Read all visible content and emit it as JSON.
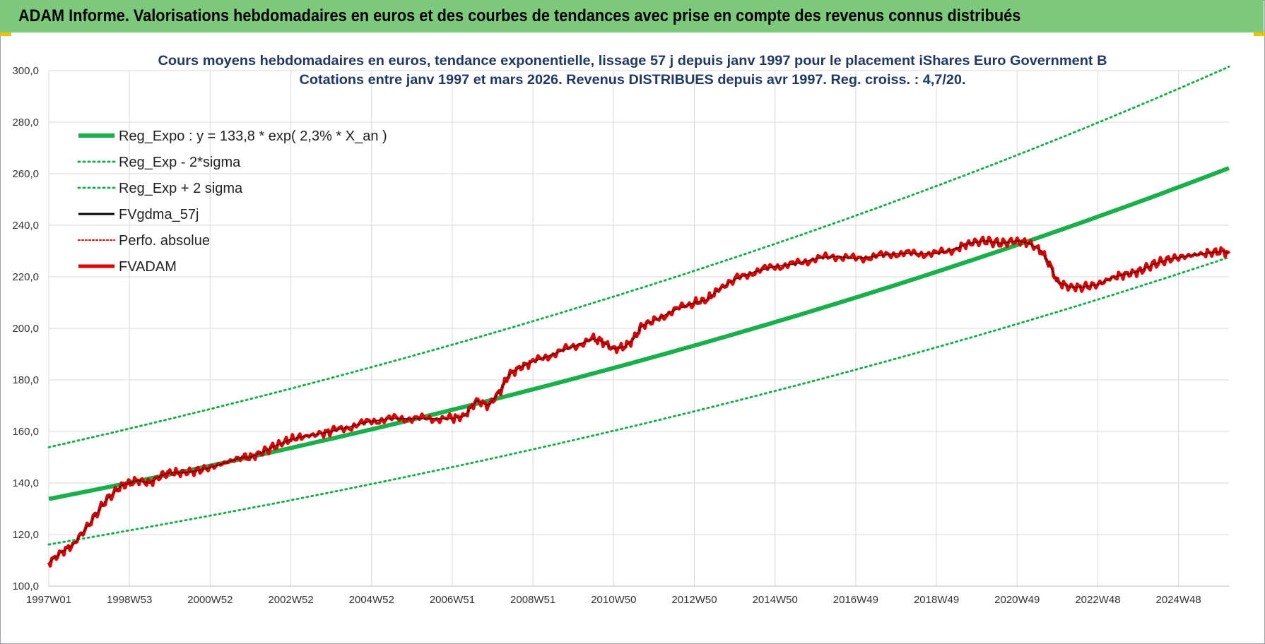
{
  "banner": {
    "title": "ADAM Informe. Valorisations hebdomadaires en euros et des courbes de tendances avec prise en compte des revenus connus distribués"
  },
  "colors": {
    "banner": "#7dc97b",
    "trend": "#19b04b",
    "price": "#e00000",
    "moving_average": "#000000",
    "grid": "#d9d9d9",
    "title": "#1f3864"
  },
  "chart_data": {
    "type": "line",
    "title": "Cours moyens hebdomadaires en euros, tendance exponentielle, lissage 57 j depuis janv 1997 pour le placement iShares Euro Government B",
    "subtitle": "Cotations entre janv 1997 et mars 2026. Revenus DISTRIBUES depuis avr 1997. Reg. croiss. : 4,7/20.",
    "xlabel": "",
    "ylabel": "",
    "x_range": [
      1997.0,
      2026.25
    ],
    "ylim": [
      100,
      300
    ],
    "y_ticks": [
      "100,0",
      "120,0",
      "140,0",
      "160,0",
      "180,0",
      "200,0",
      "220,0",
      "240,0",
      "260,0",
      "280,0",
      "300,0"
    ],
    "x_ticks": [
      {
        "label": "1997W01",
        "x": 1997.0
      },
      {
        "label": "1998W53",
        "x": 1999.0
      },
      {
        "label": "2000W52",
        "x": 2001.0
      },
      {
        "label": "2002W52",
        "x": 2003.0
      },
      {
        "label": "2004W52",
        "x": 2005.0
      },
      {
        "label": "2006W51",
        "x": 2007.0
      },
      {
        "label": "2008W51",
        "x": 2009.0
      },
      {
        "label": "2010W50",
        "x": 2011.0
      },
      {
        "label": "2012W50",
        "x": 2013.0
      },
      {
        "label": "2014W50",
        "x": 2015.0
      },
      {
        "label": "2016W49",
        "x": 2017.0
      },
      {
        "label": "2018W49",
        "x": 2019.0
      },
      {
        "label": "2020W49",
        "x": 2021.0
      },
      {
        "label": "2022W48",
        "x": 2023.0
      },
      {
        "label": "2024W48",
        "x": 2025.0
      }
    ],
    "grid": true,
    "legend_position": "top-left",
    "regression": {
      "a": 133.8,
      "growth": 0.023,
      "x0": 1997.0,
      "minus_2sigma_factor": 0.868,
      "plus_2sigma_factor": 1.15
    },
    "series": [
      {
        "name": "Reg_Expo : y = 133,8 * exp( 2,3% *  X_an )",
        "style": "solid-thick",
        "color": "#19b04b"
      },
      {
        "name": "Reg_Exp - 2*sigma",
        "style": "dotted",
        "color": "#19b04b"
      },
      {
        "name": "Reg_Exp + 2 sigma",
        "style": "dotted",
        "color": "#19b04b"
      },
      {
        "name": "FVgdma_57j",
        "style": "solid",
        "color": "#000000"
      },
      {
        "name": "Perfo. absolue",
        "style": "dotted",
        "color": "#e00000"
      },
      {
        "name": "FVADAM",
        "style": "solid-thick",
        "color": "#e00000",
        "x": [
          1997.0,
          1997.3,
          1997.6,
          1998.0,
          1998.4,
          1998.8,
          1999.0,
          1999.2,
          1999.5,
          1999.8,
          2000.0,
          2000.3,
          2000.6,
          2001.0,
          2001.4,
          2001.8,
          2002.0,
          2002.3,
          2002.7,
          2003.0,
          2003.3,
          2003.7,
          2004.0,
          2004.5,
          2005.0,
          2005.5,
          2006.0,
          2006.5,
          2007.0,
          2007.3,
          2007.6,
          2007.9,
          2008.2,
          2008.4,
          2008.7,
          2009.0,
          2009.5,
          2010.0,
          2010.5,
          2010.7,
          2011.0,
          2011.3,
          2011.5,
          2011.7,
          2012.0,
          2012.5,
          2013.0,
          2013.3,
          2013.6,
          2014.0,
          2014.5,
          2015.0,
          2015.5,
          2016.0,
          2016.5,
          2017.0,
          2017.5,
          2018.0,
          2018.5,
          2019.0,
          2019.5,
          2019.8,
          2020.2,
          2020.6,
          2021.0,
          2021.3,
          2021.6,
          2021.8,
          2022.0,
          2022.3,
          2022.6,
          2023.0,
          2023.4,
          2023.7,
          2024.0,
          2024.4,
          2024.8,
          2025.2,
          2025.6,
          2025.9,
          2026.1,
          2026.25
        ],
        "values": [
          109,
          113,
          116,
          124,
          133,
          139,
          140,
          141,
          140,
          143,
          144,
          144,
          144.5,
          146,
          148,
          150,
          150,
          152,
          155,
          157,
          158,
          159,
          160,
          162,
          164,
          165,
          165,
          165,
          165,
          166,
          172,
          170,
          176,
          182,
          185,
          187,
          190,
          193,
          196,
          195,
          192,
          193,
          196,
          201,
          203,
          207,
          210,
          211,
          215,
          219,
          222,
          224,
          225,
          227,
          228,
          227,
          228,
          229,
          229,
          229,
          231,
          233,
          234,
          233,
          234,
          233,
          230,
          225,
          218,
          216,
          216,
          217,
          220,
          221,
          222,
          225,
          227,
          228,
          229,
          229.5,
          230,
          229
        ]
      }
    ]
  }
}
